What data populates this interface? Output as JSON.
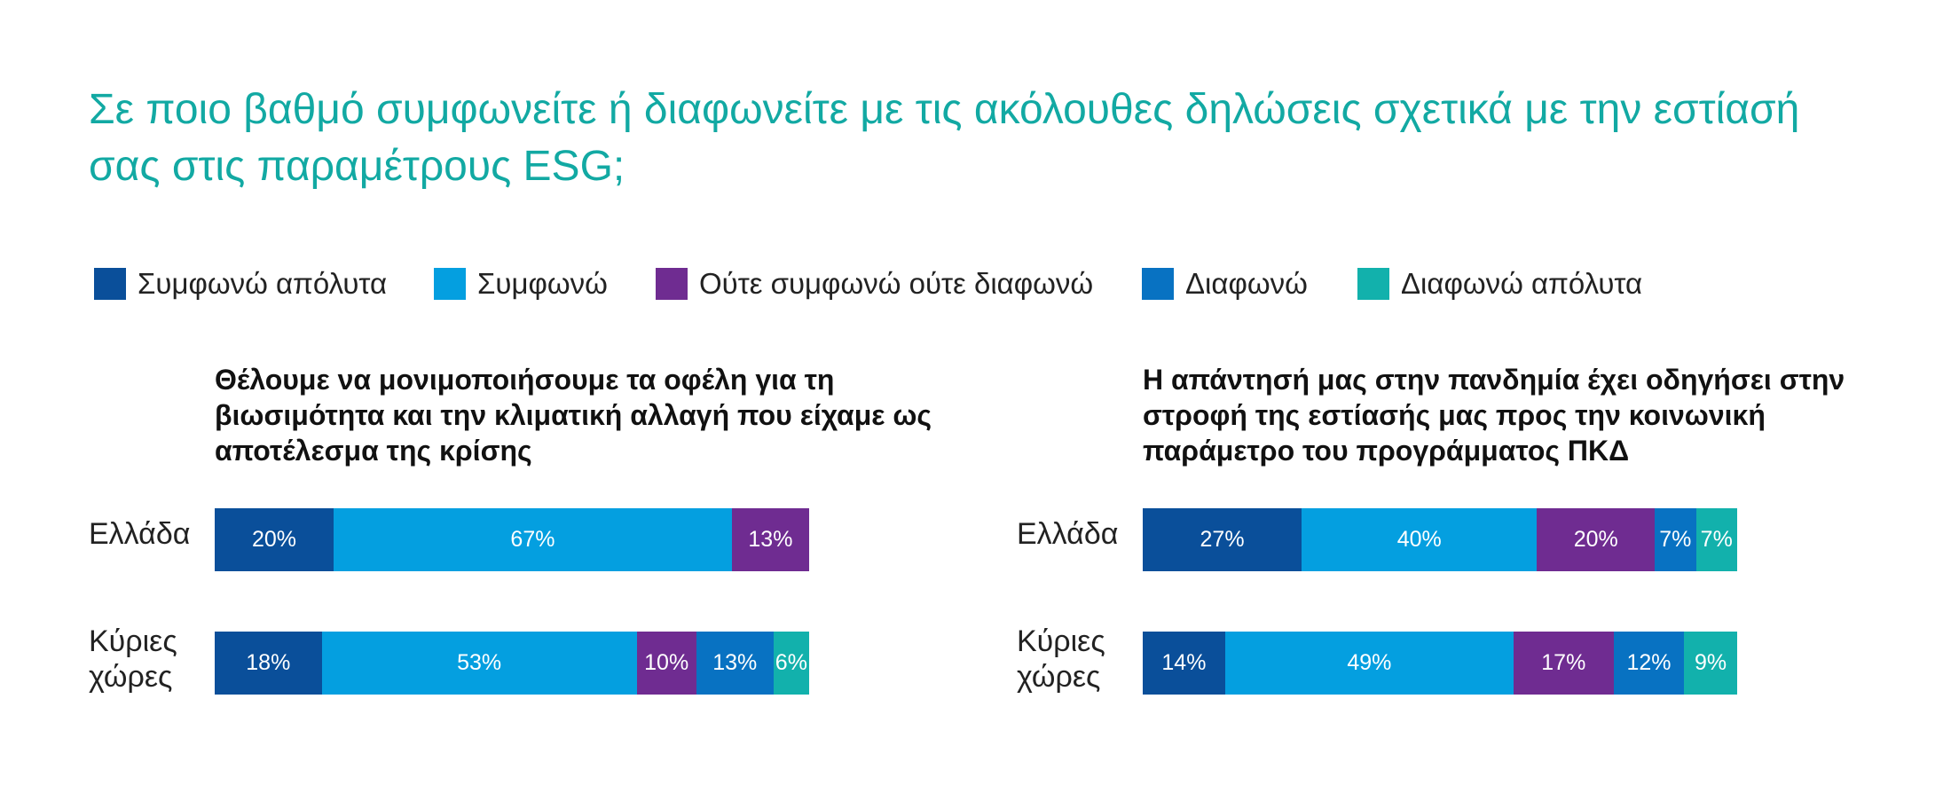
{
  "title": "Σε ποιο βαθμό συμφωνείτε ή διαφωνείτε με τις ακόλουθες δηλώσεις σχετικά με την εστίασή σας στις παραμέτρους ESG;",
  "legend": [
    {
      "label": "Συμφωνώ απόλυτα",
      "color": "#0a4f9a"
    },
    {
      "label": "Συμφωνώ",
      "color": "#049fe0"
    },
    {
      "label": "Ούτε συμφωνώ ούτε διαφωνώ",
      "color": "#6f2c91"
    },
    {
      "label": "Διαφωνώ",
      "color": "#0872c2"
    },
    {
      "label": "Διαφωνώ απόλυτα",
      "color": "#12b1ac"
    }
  ],
  "chart_data": [
    {
      "type": "bar",
      "orientation": "horizontal",
      "stacked": true,
      "title": "Θέλουμε να μονιμοποιήσουμε τα οφέλη για τη βιωσιμότητα και την κλιματική αλλαγή που είχαμε ως αποτέλεσμα της κρίσης",
      "categories": [
        "Ελλάδα",
        "Κύριες χώρες"
      ],
      "series": [
        {
          "name": "Συμφωνώ απόλυτα",
          "values": [
            20,
            18
          ],
          "labels": [
            "20%",
            "18%"
          ]
        },
        {
          "name": "Συμφωνώ",
          "values": [
            67,
            53
          ],
          "labels": [
            "67%",
            "53%"
          ]
        },
        {
          "name": "Ούτε συμφωνώ ούτε διαφωνώ",
          "values": [
            13,
            10
          ],
          "labels": [
            "13%",
            "10%"
          ]
        },
        {
          "name": "Διαφωνώ",
          "values": [
            0,
            13
          ],
          "labels": [
            "",
            "13%"
          ]
        },
        {
          "name": "Διαφωνώ απόλυτα",
          "values": [
            0,
            6
          ],
          "labels": [
            "",
            "6%"
          ]
        }
      ],
      "xlim": [
        0,
        100
      ]
    },
    {
      "type": "bar",
      "orientation": "horizontal",
      "stacked": true,
      "title": "Η απάντησή μας στην πανδημία έχει οδηγήσει στην στροφή της εστίασής μας προς την κοινωνική παράμετρο του προγράμματος ΠΚΔ",
      "categories": [
        "Ελλάδα",
        "Κύριες χώρες"
      ],
      "series": [
        {
          "name": "Συμφωνώ απόλυτα",
          "values": [
            27,
            14
          ],
          "labels": [
            "27%",
            "14%"
          ]
        },
        {
          "name": "Συμφωνώ",
          "values": [
            40,
            49
          ],
          "labels": [
            "40%",
            "49%"
          ]
        },
        {
          "name": "Ούτε συμφωνώ ούτε διαφωνώ",
          "values": [
            20,
            17
          ],
          "labels": [
            "20%",
            "17%"
          ]
        },
        {
          "name": "Διαφωνώ",
          "values": [
            7,
            12
          ],
          "labels": [
            "7%",
            "12%"
          ]
        },
        {
          "name": "Διαφωνώ απόλυτα",
          "values": [
            7,
            9
          ],
          "labels": [
            "7%",
            "9%"
          ]
        }
      ],
      "xlim": [
        0,
        100
      ]
    }
  ]
}
